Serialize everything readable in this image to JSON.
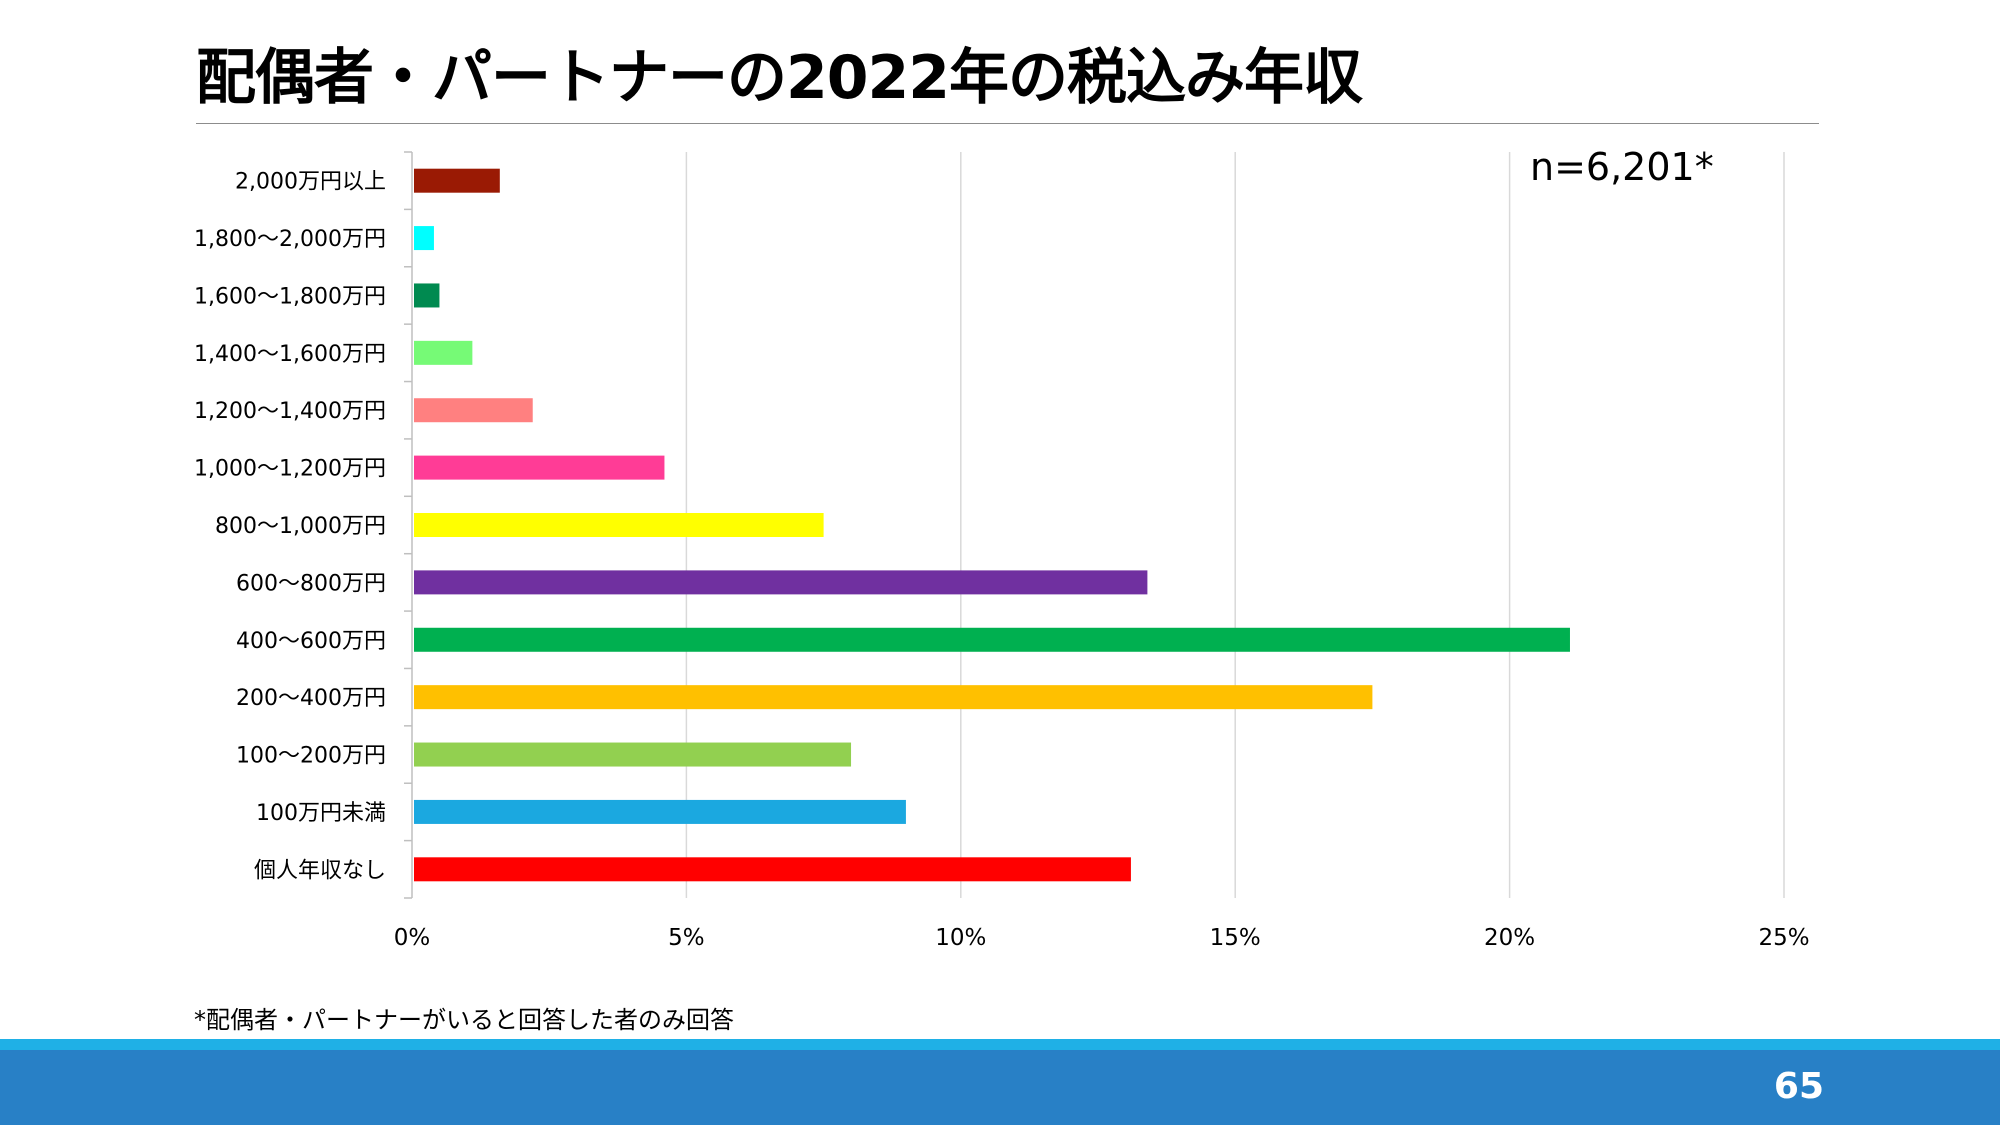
{
  "slide": {
    "title": "配偶者・パートナーの2022年の税込み年収",
    "footnote": "*配偶者・パートナーがいると回答した者のみ回答",
    "page_number": "65"
  },
  "chart_data": {
    "type": "bar",
    "orientation": "horizontal",
    "title": "配偶者・パートナーの2022年の税込み年収",
    "annotation": "n=6,201*",
    "categories": [
      "2,000万円以上",
      "1,800〜2,000万円",
      "1,600〜1,800万円",
      "1,400〜1,600万円",
      "1,200〜1,400万円",
      "1,000〜1,200万円",
      "800〜1,000万円",
      "600〜800万円",
      "400〜600万円",
      "200〜400万円",
      "100〜200万円",
      "100万円未満",
      "個人年収なし"
    ],
    "values": [
      1.6,
      0.4,
      0.5,
      1.1,
      2.2,
      4.6,
      7.5,
      13.4,
      21.1,
      17.5,
      8.0,
      9.0,
      13.1
    ],
    "colors": [
      "#9a1a04",
      "#00ffff",
      "#008a50",
      "#76fa76",
      "#ff8080",
      "#ff3c96",
      "#ffff00",
      "#7030a0",
      "#00b050",
      "#ffc000",
      "#92d050",
      "#1ba8e0",
      "#ff0000"
    ],
    "xlim": [
      0,
      25
    ],
    "x_ticks": [
      "0%",
      "5%",
      "10%",
      "15%",
      "20%",
      "25%"
    ],
    "grid": true,
    "xlabel": "",
    "ylabel": ""
  }
}
